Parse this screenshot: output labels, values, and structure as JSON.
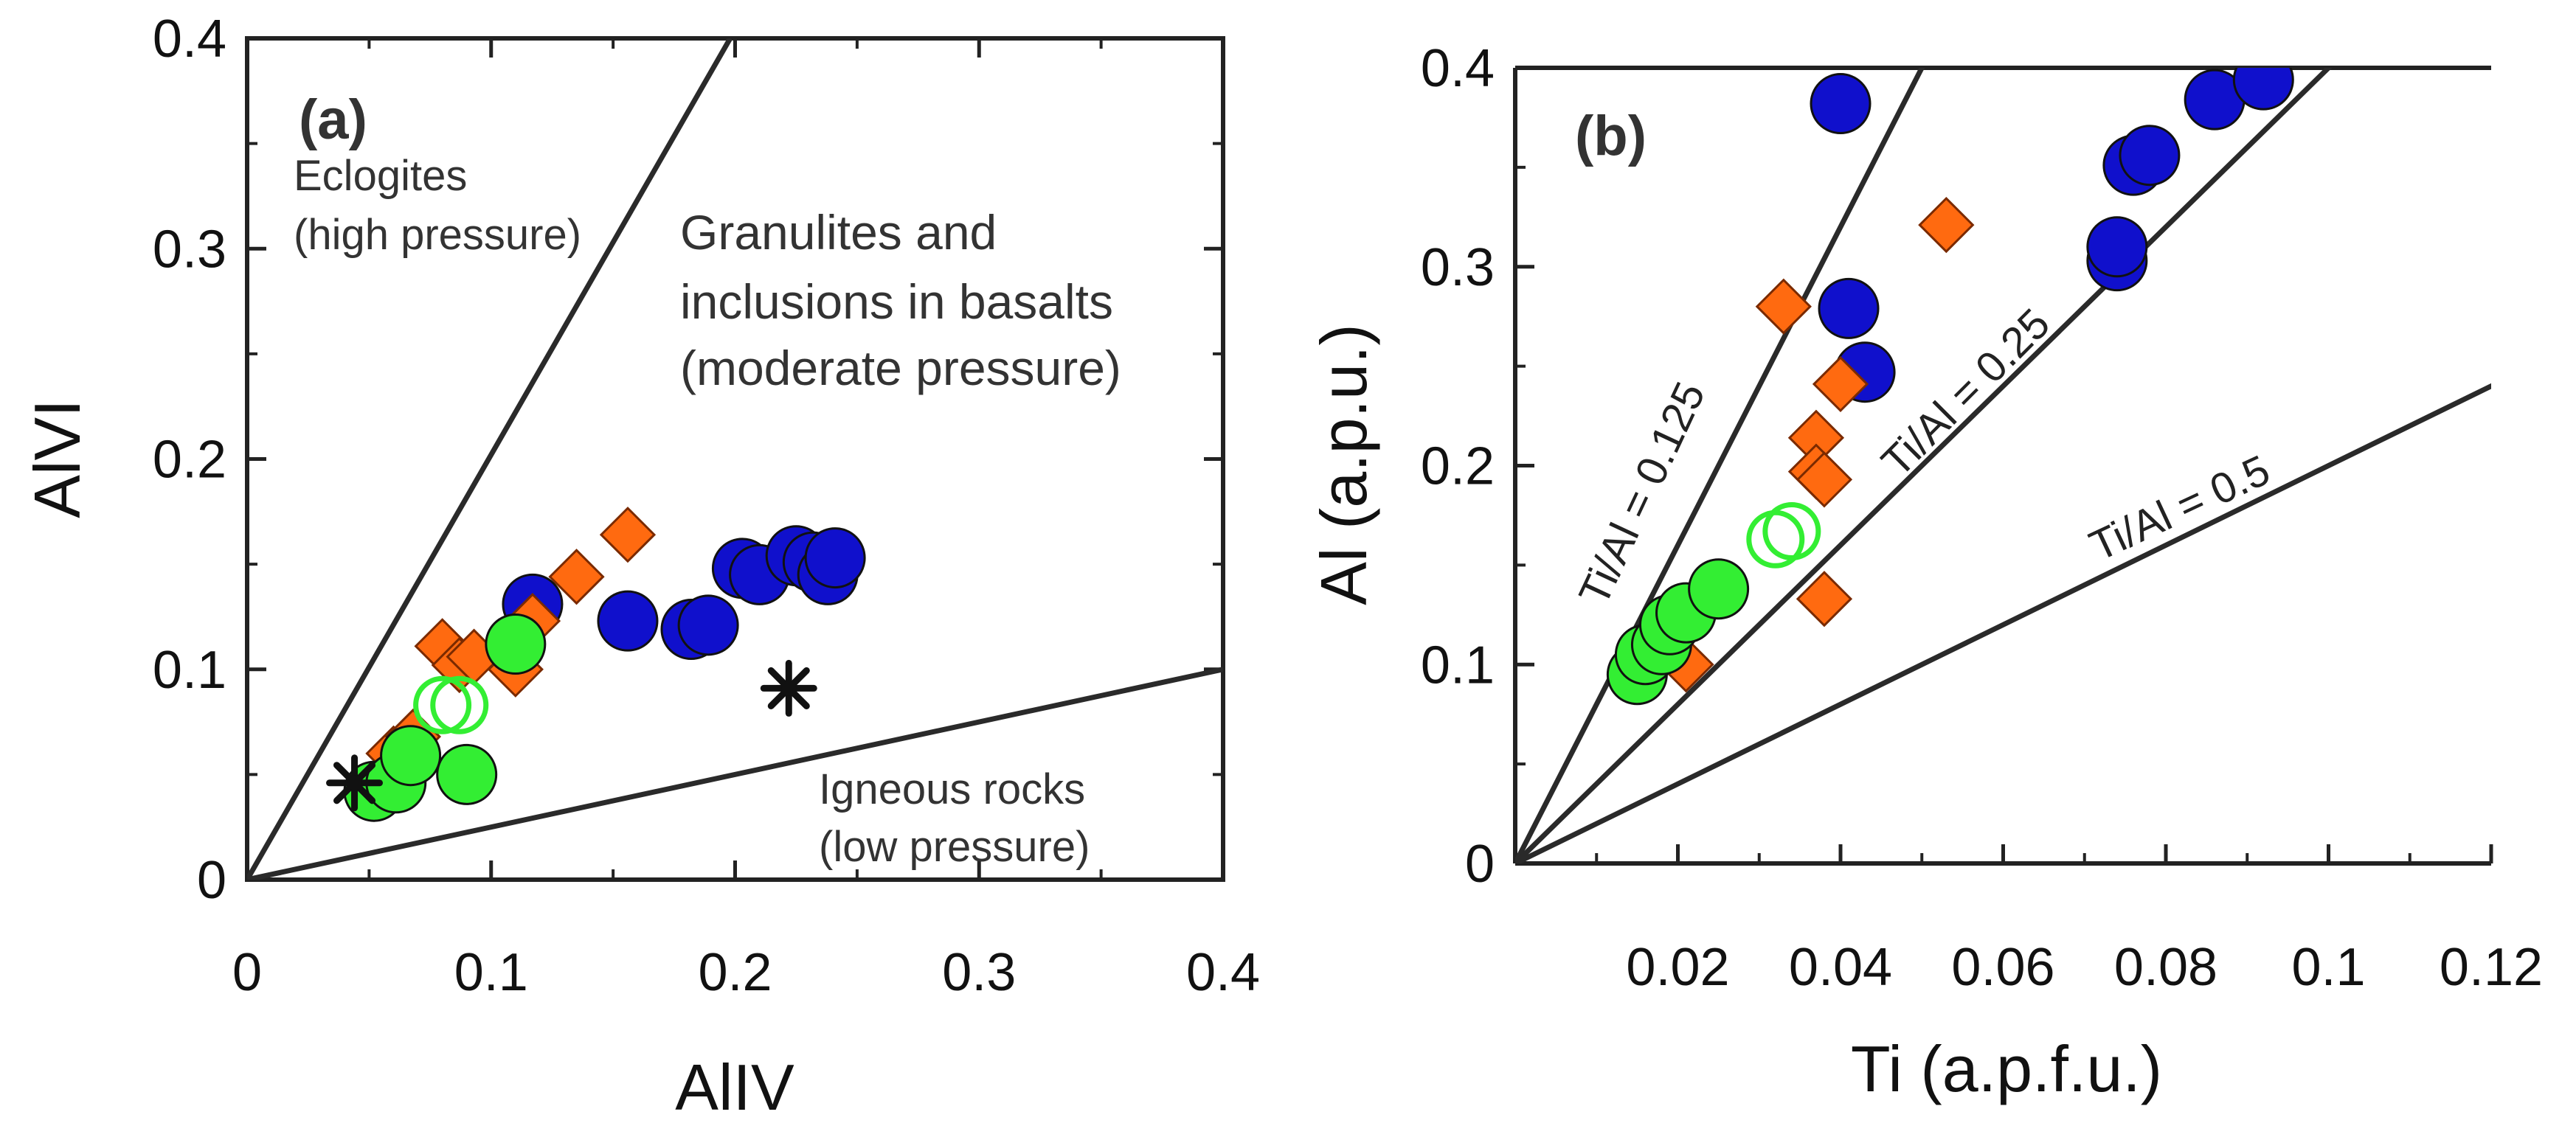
{
  "chart_data": [
    {
      "panel": "(a)",
      "type": "scatter",
      "xlabel": "AlIV",
      "ylabel": "AlVI",
      "xlim": [
        0,
        0.4
      ],
      "ylim": [
        0,
        0.4
      ],
      "xticks": [
        "0",
        "0.1",
        "0.2",
        "0.3",
        "0.4"
      ],
      "yticks": [
        "0",
        "0.1",
        "0.2",
        "0.3",
        "0.4"
      ],
      "grid": false,
      "boundaries": [
        {
          "from": [
            0,
            0
          ],
          "to": [
            0.198,
            0.4
          ]
        },
        {
          "from": [
            0,
            0
          ],
          "to": [
            0.4,
            0.1
          ]
        }
      ],
      "regions": [
        {
          "lines": [
            "Eclogites",
            "(high pressure)"
          ]
        },
        {
          "lines": [
            "Granulites and",
            "inclusions in basalts",
            "(moderate pressure)"
          ]
        },
        {
          "lines": [
            "Igneous rocks",
            "(low pressure)"
          ]
        }
      ],
      "series": [
        {
          "marker": "circle",
          "color": "#1010cc",
          "x": [
            0.117,
            0.156,
            0.182,
            0.189,
            0.203,
            0.21,
            0.225,
            0.232,
            0.238,
            0.241
          ],
          "y": [
            0.131,
            0.123,
            0.119,
            0.121,
            0.148,
            0.145,
            0.154,
            0.151,
            0.145,
            0.153
          ]
        },
        {
          "marker": "diamond",
          "color": "#ff6a10",
          "x": [
            0.06,
            0.068,
            0.08,
            0.087,
            0.093,
            0.11,
            0.117,
            0.135,
            0.156
          ],
          "y": [
            0.06,
            0.068,
            0.111,
            0.102,
            0.106,
            0.1,
            0.123,
            0.144,
            0.164
          ]
        },
        {
          "marker": "circle",
          "color": "#33ee33",
          "x": [
            0.052,
            0.061,
            0.067,
            0.09,
            0.11
          ],
          "y": [
            0.042,
            0.046,
            0.059,
            0.05,
            0.112
          ]
        },
        {
          "marker": "open-circle",
          "color": "#33ee33",
          "x": [
            0.08,
            0.087
          ],
          "y": [
            0.083,
            0.083
          ]
        },
        {
          "marker": "star",
          "color": "#111111",
          "x": [
            0.044,
            0.222
          ],
          "y": [
            0.046,
            0.091
          ]
        }
      ]
    },
    {
      "panel": "(b)",
      "type": "scatter",
      "xlabel": "Ti (a.p.f.u.)",
      "ylabel": "Al (a.p.u.)",
      "xlim": [
        0,
        0.12
      ],
      "ylim": [
        0,
        0.4
      ],
      "xticks": [
        "0.02",
        "0.04",
        "0.06",
        "0.08",
        "0.1",
        "0.12"
      ],
      "yticks": [
        "0",
        "0.1",
        "0.2",
        "0.3",
        "0.4"
      ],
      "grid": false,
      "ratio_lines": [
        {
          "slope": 0.125,
          "label": "Ti/Al = 0.125"
        },
        {
          "slope": 0.25,
          "label": "Ti/Al = 0.25"
        },
        {
          "slope": 0.5,
          "label": "Ti/Al = 0.5"
        }
      ],
      "series": [
        {
          "marker": "circle",
          "color": "#1010cc",
          "x": [
            0.04,
            0.041,
            0.043,
            0.074,
            0.074,
            0.076,
            0.078,
            0.086,
            0.092
          ],
          "y": [
            0.382,
            0.279,
            0.247,
            0.303,
            0.31,
            0.351,
            0.356,
            0.384,
            0.394
          ]
        },
        {
          "marker": "diamond",
          "color": "#ff6a10",
          "x": [
            0.021,
            0.033,
            0.037,
            0.037,
            0.038,
            0.038,
            0.04,
            0.053
          ],
          "y": [
            0.1,
            0.28,
            0.214,
            0.197,
            0.193,
            0.133,
            0.241,
            0.321
          ]
        },
        {
          "marker": "circle",
          "color": "#33ee33",
          "x": [
            0.015,
            0.016,
            0.018,
            0.019,
            0.021,
            0.025
          ],
          "y": [
            0.095,
            0.105,
            0.11,
            0.12,
            0.126,
            0.138
          ]
        },
        {
          "marker": "open-circle",
          "color": "#33ee33",
          "x": [
            0.032,
            0.034
          ],
          "y": [
            0.163,
            0.167
          ]
        }
      ]
    }
  ]
}
